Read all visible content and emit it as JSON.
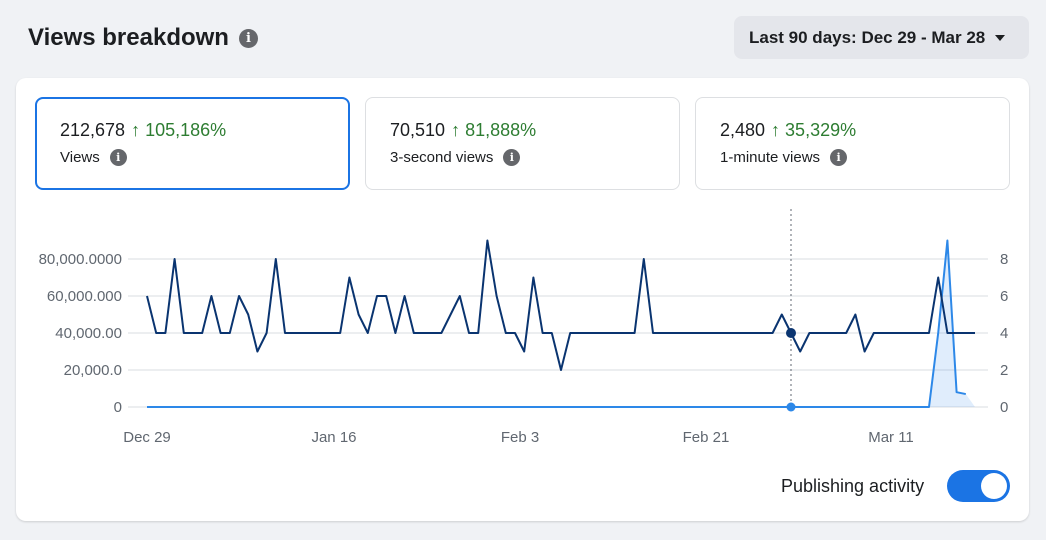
{
  "header": {
    "title": "Views breakdown",
    "date_range": "Last 90 days: Dec 29 - Mar 28"
  },
  "metrics": [
    {
      "value": "212,678",
      "change": "↑ 105,186%",
      "label": "Views",
      "active": true
    },
    {
      "value": "70,510",
      "change": "↑ 81,888%",
      "label": "3-second views",
      "active": false
    },
    {
      "value": "2,480",
      "change": "↑ 35,329%",
      "label": "1-minute views",
      "active": false
    }
  ],
  "toggle": {
    "label": "Publishing activity",
    "on": true
  },
  "colors": {
    "accent": "#1b74e4",
    "positive": "#2e7d32",
    "primary_line": "#0a3470",
    "secondary_line": "#2d88e8"
  },
  "chart_data": {
    "type": "line",
    "x_labels": [
      "Dec 29",
      "Jan 16",
      "Feb 3",
      "Feb 21",
      "Mar 11"
    ],
    "left_axis": {
      "ticks": [
        "0",
        "20,000.0",
        "40,000.00",
        "60,000.000",
        "80,000.0000"
      ],
      "ylim": [
        0,
        80000
      ]
    },
    "right_axis": {
      "ticks": [
        "0",
        "2",
        "4",
        "6",
        "8"
      ],
      "ylim": [
        0,
        8
      ]
    },
    "grid": true,
    "series": [
      {
        "axis": "right",
        "values": [
          6,
          4,
          4,
          8,
          4,
          4,
          4,
          6,
          4,
          4,
          6,
          5,
          3,
          4,
          8,
          4,
          4,
          4,
          4,
          4,
          4,
          4,
          7,
          5,
          4,
          6,
          6,
          4,
          6,
          4,
          4,
          4,
          4,
          5,
          6,
          4,
          4,
          9,
          6,
          4,
          4,
          3,
          7,
          4,
          4,
          2,
          4,
          4,
          4,
          4,
          4,
          4,
          4,
          4,
          8,
          4,
          4,
          4,
          4,
          4,
          4,
          4,
          4,
          4,
          4,
          4,
          4,
          4,
          4,
          5,
          4,
          3,
          4,
          4,
          4,
          4,
          4,
          5,
          3,
          4,
          4,
          4,
          4,
          4,
          4,
          4,
          7,
          4,
          4,
          4,
          4
        ]
      },
      {
        "axis": "left",
        "values": [
          0,
          0,
          0,
          0,
          0,
          0,
          0,
          0,
          0,
          0,
          0,
          0,
          0,
          0,
          0,
          0,
          0,
          0,
          0,
          0,
          0,
          0,
          0,
          0,
          0,
          0,
          0,
          0,
          0,
          0,
          0,
          0,
          0,
          0,
          0,
          0,
          0,
          0,
          0,
          0,
          0,
          0,
          0,
          0,
          0,
          0,
          0,
          0,
          0,
          0,
          0,
          0,
          0,
          0,
          0,
          0,
          0,
          0,
          0,
          0,
          0,
          0,
          0,
          0,
          0,
          0,
          0,
          0,
          0,
          0,
          0,
          0,
          0,
          0,
          0,
          0,
          0,
          0,
          0,
          0,
          0,
          0,
          0,
          0,
          0,
          0,
          40000,
          90000,
          8000,
          7000
        ]
      }
    ],
    "hover_index": 70
  }
}
